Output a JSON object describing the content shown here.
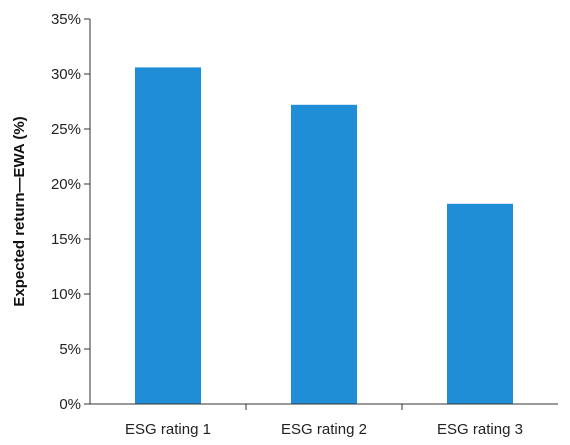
{
  "chart_data": {
    "type": "bar",
    "categories": [
      "ESG rating 1",
      "ESG rating 2",
      "ESG rating 3"
    ],
    "values": [
      30.6,
      27.2,
      18.2
    ],
    "value_unit": "%",
    "ylabel": "Expected return—EWA (%)",
    "xlabel": "",
    "ylim": [
      0,
      35
    ],
    "y_ticks": [
      0,
      5,
      10,
      15,
      20,
      25,
      30,
      35
    ],
    "y_tick_labels": [
      "0%",
      "5%",
      "10%",
      "15%",
      "20%",
      "25%",
      "30%",
      "35%"
    ],
    "grid": false,
    "legend": "none",
    "bar_color": "#1f8ed6",
    "axis_color": "#333333"
  }
}
